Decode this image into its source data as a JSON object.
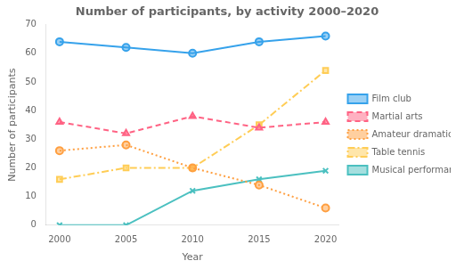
{
  "chart_data": {
    "type": "line",
    "title": "Number of participants, by activity 2000–2020",
    "xlabel": "Year",
    "ylabel": "Number of participants",
    "x": [
      2000,
      2005,
      2010,
      2015,
      2020
    ],
    "series": [
      {
        "name": "Film club",
        "values": [
          64,
          62,
          60,
          64,
          66
        ],
        "marker": "circle",
        "line_style": "solid"
      },
      {
        "name": "Martial arts",
        "values": [
          36,
          32,
          38,
          34,
          36
        ],
        "marker": "triangle",
        "line_style": "dashed"
      },
      {
        "name": "Amateur dramatics",
        "values": [
          26,
          28,
          20,
          14,
          6
        ],
        "marker": "circle",
        "line_style": "dotted"
      },
      {
        "name": "Table tennis",
        "values": [
          16,
          20,
          20,
          35,
          54
        ],
        "marker": "square",
        "line_style": "dashdot"
      },
      {
        "name": "Musical performances",
        "values": [
          0,
          0,
          12,
          16,
          19
        ],
        "marker": "x",
        "line_style": "solid"
      }
    ],
    "xlim": [
      1999,
      2021
    ],
    "xticks": [
      2000,
      2005,
      2010,
      2015,
      2020
    ],
    "ylim": [
      0,
      70
    ],
    "yticks": [
      0,
      10,
      20,
      30,
      40,
      50,
      60,
      70
    ],
    "grid": false,
    "legend": "right"
  }
}
